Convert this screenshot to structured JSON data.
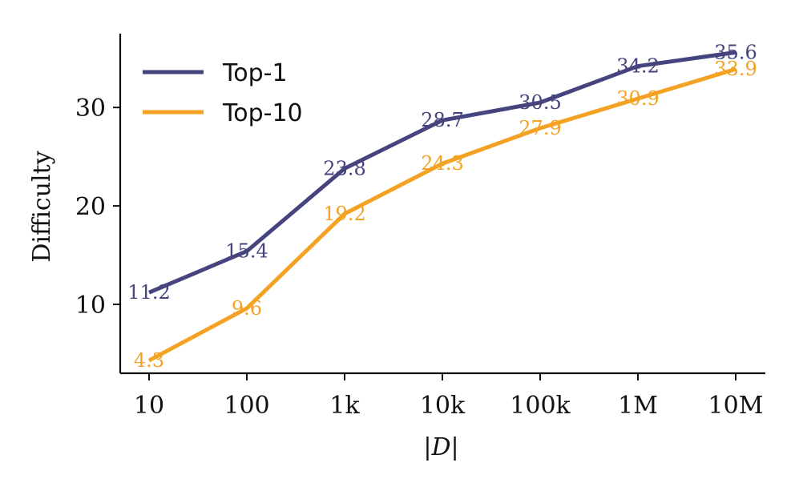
{
  "chart_data": {
    "type": "line",
    "categories": [
      "10",
      "100",
      "1k",
      "10k",
      "100k",
      "1M",
      "10M"
    ],
    "xlabel": "|D|",
    "ylabel": "Difficulty",
    "ylim": [
      3,
      37.5
    ],
    "yticks": [
      10,
      20,
      30
    ],
    "grid": false,
    "legend_position": "top-left",
    "series": [
      {
        "name": "Top-1",
        "color": "#45447e",
        "values": [
          11.2,
          15.4,
          23.8,
          28.7,
          30.5,
          34.2,
          35.6
        ],
        "labels": [
          "11.2",
          "15.4",
          "23.8",
          "28.7",
          "30.5",
          "34.2",
          "35.6"
        ]
      },
      {
        "name": "Top-10",
        "color": "#f4a224",
        "values": [
          4.3,
          9.6,
          19.2,
          24.3,
          27.9,
          30.9,
          33.9
        ],
        "labels": [
          "4.3",
          "9.6",
          "19.2",
          "24.3",
          "27.9",
          "30.9",
          "33.9"
        ]
      }
    ]
  }
}
